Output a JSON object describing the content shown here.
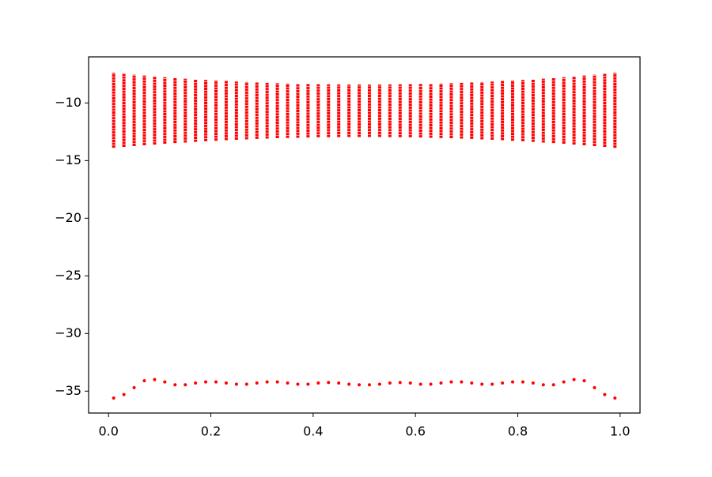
{
  "chart_data": {
    "type": "scatter",
    "x": [
      0.01,
      0.03,
      0.05,
      0.07,
      0.09,
      0.11,
      0.13,
      0.15,
      0.17,
      0.19,
      0.21,
      0.23,
      0.25,
      0.27,
      0.29,
      0.31,
      0.33,
      0.35,
      0.37,
      0.39,
      0.41,
      0.43,
      0.45,
      0.47,
      0.49,
      0.51,
      0.53,
      0.55,
      0.57,
      0.59,
      0.61,
      0.63,
      0.65,
      0.67,
      0.69,
      0.71,
      0.73,
      0.75,
      0.77,
      0.79,
      0.81,
      0.83,
      0.85,
      0.87,
      0.89,
      0.91,
      0.93,
      0.95,
      0.97,
      0.99
    ],
    "series": [
      {
        "color": "#ff0000",
        "values": [
          -35.6,
          -35.3,
          -34.7,
          -34.1,
          -34.0,
          -34.2,
          -34.45,
          -34.45,
          -34.3,
          -34.2,
          -34.2,
          -34.3,
          -34.4,
          -34.4,
          -34.3,
          -34.2,
          -34.2,
          -34.3,
          -34.4,
          -34.4,
          -34.3,
          -34.25,
          -34.3,
          -34.4,
          -34.45,
          -34.45,
          -34.4,
          -34.3,
          -34.25,
          -34.3,
          -34.4,
          -34.4,
          -34.3,
          -34.2,
          -34.2,
          -34.3,
          -34.4,
          -34.4,
          -34.3,
          -34.2,
          -34.2,
          -34.3,
          -34.45,
          -34.45,
          -34.2,
          -34.0,
          -34.1,
          -34.7,
          -35.3,
          -35.6
        ]
      },
      {
        "color": "#ff0000",
        "values_low": [
          -13.89,
          -13.81,
          -13.74,
          -13.67,
          -13.61,
          -13.54,
          -13.48,
          -13.43,
          -13.37,
          -13.32,
          -13.28,
          -13.23,
          -13.19,
          -13.16,
          -13.12,
          -13.09,
          -13.06,
          -13.04,
          -13.02,
          -13.0,
          -12.98,
          -12.97,
          -12.96,
          -12.95,
          -12.95,
          -12.95,
          -12.95,
          -12.96,
          -12.97,
          -12.98,
          -13.0,
          -13.02,
          -13.04,
          -13.06,
          -13.09,
          -13.12,
          -13.16,
          -13.19,
          -13.23,
          -13.28,
          -13.32,
          -13.37,
          -13.43,
          -13.48,
          -13.54,
          -13.61,
          -13.67,
          -13.74,
          -13.81,
          -13.89
        ],
        "values_high": [
          -7.39,
          -7.47,
          -7.55,
          -7.62,
          -7.69,
          -7.76,
          -7.83,
          -7.89,
          -7.94,
          -8.0,
          -8.05,
          -8.09,
          -8.14,
          -8.18,
          -8.21,
          -8.25,
          -8.28,
          -8.31,
          -8.33,
          -8.35,
          -8.37,
          -8.38,
          -8.39,
          -8.4,
          -8.4,
          -8.4,
          -8.4,
          -8.39,
          -8.38,
          -8.37,
          -8.35,
          -8.33,
          -8.31,
          -8.28,
          -8.25,
          -8.21,
          -8.18,
          -8.14,
          -8.09,
          -8.05,
          -8.0,
          -7.94,
          -7.89,
          -7.83,
          -7.76,
          -7.69,
          -7.62,
          -7.55,
          -7.47,
          -7.39
        ]
      }
    ],
    "xlim": [
      -0.039,
      1.039
    ],
    "xticks": [
      {
        "value": 0,
        "label": "0.0"
      },
      0.2,
      0.4,
      0.6,
      0.8,
      {
        "value": 1,
        "label": "1.0"
      }
    ],
    "ylim": [
      -36.9,
      -6.0
    ],
    "yticks": [
      {
        "value": -35,
        "label": "−35"
      },
      {
        "value": -30,
        "label": "−30"
      },
      {
        "value": -25,
        "label": "−25"
      },
      {
        "value": -20,
        "label": "−20"
      },
      {
        "value": -15,
        "label": "−15"
      },
      {
        "value": -10,
        "label": "−10"
      }
    ]
  }
}
